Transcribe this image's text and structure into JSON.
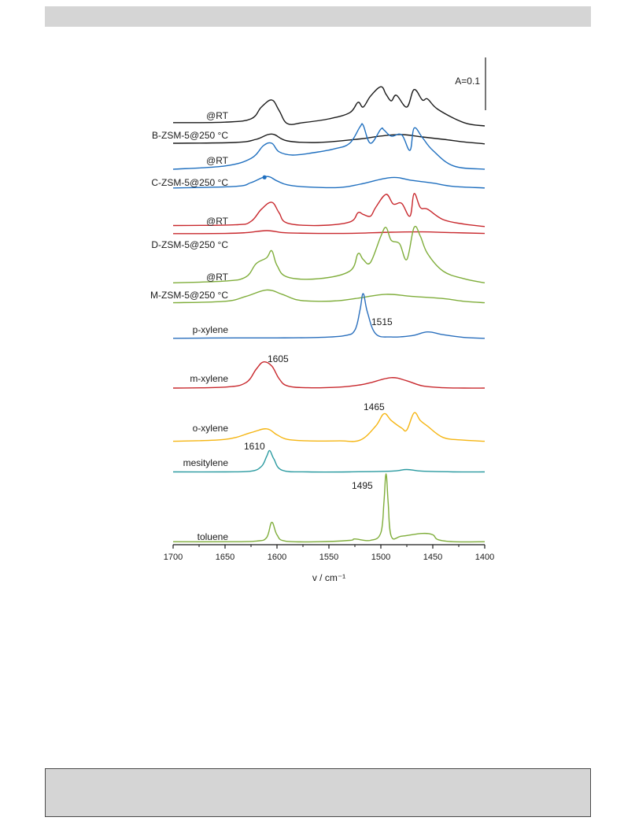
{
  "chart_data": {
    "type": "line",
    "title": "",
    "xlabel": "v / cm⁻¹",
    "ylabel": "",
    "xlim": [
      1700,
      1400
    ],
    "ylim": [
      0,
      1
    ],
    "x_ticks": [
      1700,
      1650,
      1600,
      1550,
      1500,
      1450,
      1400
    ],
    "scale_bar_label": "A=0.1",
    "grid": false,
    "legend": "none",
    "offset_stacked": true,
    "series": [
      {
        "name": "@RT",
        "sample": "B-ZSM-5",
        "color": "#1a1a1a",
        "x": [
          1700,
          1650,
          1625,
          1615,
          1605,
          1598,
          1590,
          1575,
          1550,
          1530,
          1522,
          1517,
          1510,
          1500,
          1495,
          1490,
          1485,
          1475,
          1468,
          1460,
          1455,
          1445,
          1420,
          1400
        ],
        "y": [
          0.12,
          0.13,
          0.2,
          0.45,
          0.6,
          0.38,
          0.1,
          0.12,
          0.2,
          0.33,
          0.55,
          0.45,
          0.68,
          0.88,
          0.72,
          0.58,
          0.7,
          0.45,
          0.82,
          0.6,
          0.62,
          0.4,
          0.12,
          0.05
        ]
      },
      {
        "name": "B-ZSM-5@250 °C",
        "sample": "B-ZSM-5",
        "color": "#1a1a1a",
        "x": [
          1700,
          1640,
          1620,
          1605,
          1590,
          1560,
          1520,
          1500,
          1480,
          1460,
          1440,
          1420,
          1400
        ],
        "y": [
          0.08,
          0.12,
          0.28,
          0.55,
          0.2,
          0.12,
          0.3,
          0.45,
          0.52,
          0.4,
          0.28,
          0.15,
          0.05
        ]
      },
      {
        "name": "@RT",
        "sample": "C-ZSM-5",
        "color": "#1f6fbf",
        "x": [
          1700,
          1650,
          1625,
          1613,
          1605,
          1598,
          1585,
          1565,
          1545,
          1530,
          1520,
          1517,
          1510,
          1500,
          1497,
          1490,
          1480,
          1472,
          1468,
          1460,
          1450,
          1430,
          1400
        ],
        "y": [
          0.05,
          0.12,
          0.28,
          0.55,
          0.6,
          0.42,
          0.35,
          0.4,
          0.48,
          0.6,
          0.95,
          0.98,
          0.6,
          0.9,
          0.88,
          0.75,
          0.78,
          0.45,
          0.92,
          0.72,
          0.45,
          0.12,
          0.05
        ]
      },
      {
        "name": "C-ZSM-5@250 °C",
        "sample": "C-ZSM-5",
        "color": "#1f6fbf",
        "x": [
          1700,
          1640,
          1625,
          1610,
          1600,
          1590,
          1570,
          1540,
          1520,
          1490,
          1470,
          1450,
          1430,
          1400
        ],
        "y": [
          0.08,
          0.15,
          0.32,
          0.6,
          0.4,
          0.22,
          0.12,
          0.1,
          0.25,
          0.55,
          0.42,
          0.3,
          0.15,
          0.08
        ]
      },
      {
        "name": "@RT",
        "sample": "D-ZSM-5",
        "color": "#c8282d",
        "x": [
          1700,
          1640,
          1625,
          1615,
          1605,
          1598,
          1590,
          1560,
          1530,
          1522,
          1517,
          1510,
          1505,
          1495,
          1488,
          1480,
          1472,
          1468,
          1462,
          1455,
          1440,
          1420,
          1400
        ],
        "y": [
          0.08,
          0.1,
          0.2,
          0.55,
          0.75,
          0.45,
          0.15,
          0.08,
          0.18,
          0.45,
          0.4,
          0.35,
          0.6,
          0.98,
          0.7,
          0.72,
          0.35,
          1.0,
          0.6,
          0.55,
          0.25,
          0.12,
          0.05
        ]
      },
      {
        "name": "D-ZSM-5@250 °C",
        "sample": "D-ZSM-5",
        "color": "#c8282d",
        "x": [
          1700,
          1650,
          1630,
          1610,
          1595,
          1580,
          1560,
          1540,
          1520,
          1490,
          1460,
          1430,
          1400
        ],
        "y": [
          0.1,
          0.12,
          0.2,
          0.42,
          0.22,
          0.15,
          0.12,
          0.12,
          0.15,
          0.25,
          0.28,
          0.2,
          0.12
        ]
      },
      {
        "name": "@RT",
        "sample": "M-ZSM-5",
        "color": "#7fad3a",
        "x": [
          1700,
          1650,
          1630,
          1620,
          1610,
          1605,
          1600,
          1590,
          1560,
          1530,
          1522,
          1517,
          1510,
          1500,
          1495,
          1490,
          1482,
          1475,
          1468,
          1462,
          1455,
          1440,
          1420,
          1400
        ],
        "y": [
          0.05,
          0.08,
          0.15,
          0.38,
          0.48,
          0.6,
          0.35,
          0.15,
          0.12,
          0.25,
          0.55,
          0.45,
          0.4,
          0.85,
          1.0,
          0.78,
          0.72,
          0.45,
          1.0,
          0.85,
          0.55,
          0.25,
          0.12,
          0.05
        ]
      },
      {
        "name": "M-ZSM-5@250 °C",
        "sample": "M-ZSM-5",
        "color": "#7fad3a",
        "x": [
          1700,
          1650,
          1630,
          1610,
          1595,
          1580,
          1560,
          1540,
          1520,
          1495,
          1470,
          1440,
          1420,
          1400
        ],
        "y": [
          0.05,
          0.12,
          0.35,
          0.65,
          0.45,
          0.18,
          0.12,
          0.15,
          0.28,
          0.45,
          0.35,
          0.25,
          0.12,
          0.05
        ]
      },
      {
        "name": "p-xylene",
        "color": "#2a6fbd",
        "x": [
          1700,
          1640,
          1600,
          1560,
          1535,
          1525,
          1520,
          1517,
          1513,
          1505,
          1490,
          1470,
          1455,
          1440,
          1420,
          1400
        ],
        "y": [
          0.02,
          0.03,
          0.03,
          0.04,
          0.08,
          0.2,
          0.65,
          1.0,
          0.6,
          0.12,
          0.05,
          0.08,
          0.16,
          0.1,
          0.04,
          0.02
        ]
      },
      {
        "name": "m-xylene",
        "color": "#c8282d",
        "x": [
          1700,
          1650,
          1630,
          1620,
          1613,
          1605,
          1598,
          1590,
          1570,
          1540,
          1520,
          1510,
          1490,
          1475,
          1460,
          1440,
          1420,
          1400
        ],
        "y": [
          0.05,
          0.08,
          0.22,
          0.65,
          0.88,
          0.75,
          0.35,
          0.12,
          0.06,
          0.08,
          0.15,
          0.22,
          0.38,
          0.28,
          0.12,
          0.06,
          0.05,
          0.05
        ]
      },
      {
        "name": "o-xylene",
        "color": "#f5b512",
        "x": [
          1700,
          1650,
          1625,
          1610,
          1600,
          1590,
          1570,
          1540,
          1520,
          1505,
          1497,
          1490,
          1480,
          1475,
          1468,
          1462,
          1455,
          1440,
          1420,
          1400
        ],
        "y": [
          0.05,
          0.1,
          0.28,
          0.38,
          0.22,
          0.1,
          0.06,
          0.06,
          0.08,
          0.45,
          0.78,
          0.6,
          0.4,
          0.35,
          0.8,
          0.6,
          0.45,
          0.15,
          0.08,
          0.05
        ]
      },
      {
        "name": "mesitylene",
        "color": "#2a9aa0",
        "x": [
          1700,
          1650,
          1625,
          1615,
          1610,
          1607,
          1603,
          1595,
          1570,
          1530,
          1490,
          1475,
          1460,
          1430,
          1400
        ],
        "y": [
          0.05,
          0.05,
          0.08,
          0.28,
          0.7,
          0.95,
          0.6,
          0.12,
          0.05,
          0.05,
          0.08,
          0.15,
          0.08,
          0.05,
          0.05
        ]
      },
      {
        "name": "toluene",
        "color": "#7fad3a",
        "x": [
          1700,
          1650,
          1620,
          1610,
          1605,
          1600,
          1592,
          1560,
          1530,
          1525,
          1510,
          1500,
          1497,
          1495,
          1493,
          1490,
          1480,
          1460,
          1450,
          1445,
          1430,
          1400
        ],
        "y": [
          0.02,
          0.02,
          0.03,
          0.08,
          0.3,
          0.12,
          0.03,
          0.02,
          0.04,
          0.06,
          0.04,
          0.15,
          0.6,
          1.0,
          0.6,
          0.1,
          0.1,
          0.14,
          0.12,
          0.05,
          0.02,
          0.02
        ]
      }
    ],
    "annotations": [
      {
        "text": "1515",
        "x": 1515
      },
      {
        "text": "1605",
        "x": 1605
      },
      {
        "text": "1465",
        "x": 1465
      },
      {
        "text": "1610",
        "x": 1610
      },
      {
        "text": "1495",
        "x": 1495
      }
    ]
  }
}
